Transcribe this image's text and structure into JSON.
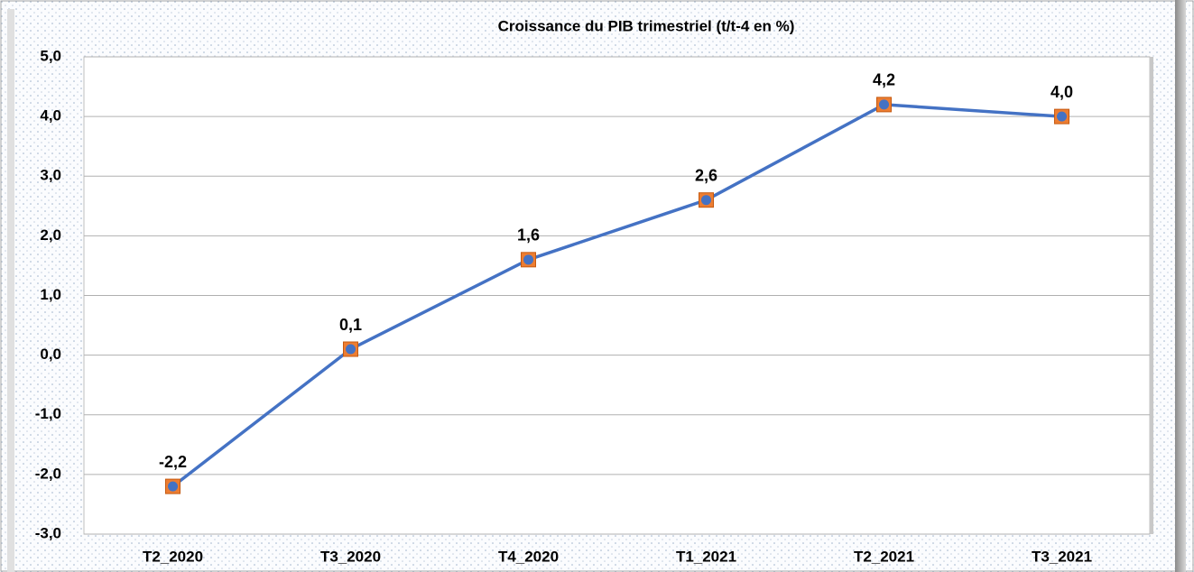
{
  "chart_data": {
    "type": "line",
    "title": "Croissance du PIB trimestriel (t/t-4 en %)",
    "categories": [
      "T2_2020",
      "T3_2020",
      "T4_2020",
      "T1_2021",
      "T2_2021",
      "T3_2021"
    ],
    "series": [
      {
        "color": "#4472c4",
        "marker_color": "#ed7d31",
        "values": [
          -2.2,
          0.1,
          1.6,
          2.6,
          4.2,
          4.0
        ],
        "value_labels": [
          "-2,2",
          "0,1",
          "1,6",
          "2,6",
          "4,2",
          "4,0"
        ]
      }
    ],
    "ylim": [
      -3,
      5
    ],
    "yticks": [
      {
        "value": 5,
        "label": "5,0"
      },
      {
        "value": 4,
        "label": "4,0"
      },
      {
        "value": 3,
        "label": "3,0"
      },
      {
        "value": 2,
        "label": "2,0"
      },
      {
        "value": 1,
        "label": "1,0"
      },
      {
        "value": 0,
        "label": "0,0"
      },
      {
        "value": -1,
        "label": "-1,0"
      },
      {
        "value": -2,
        "label": "-2,0"
      },
      {
        "value": -3,
        "label": "-3,0"
      }
    ],
    "grid": true
  }
}
